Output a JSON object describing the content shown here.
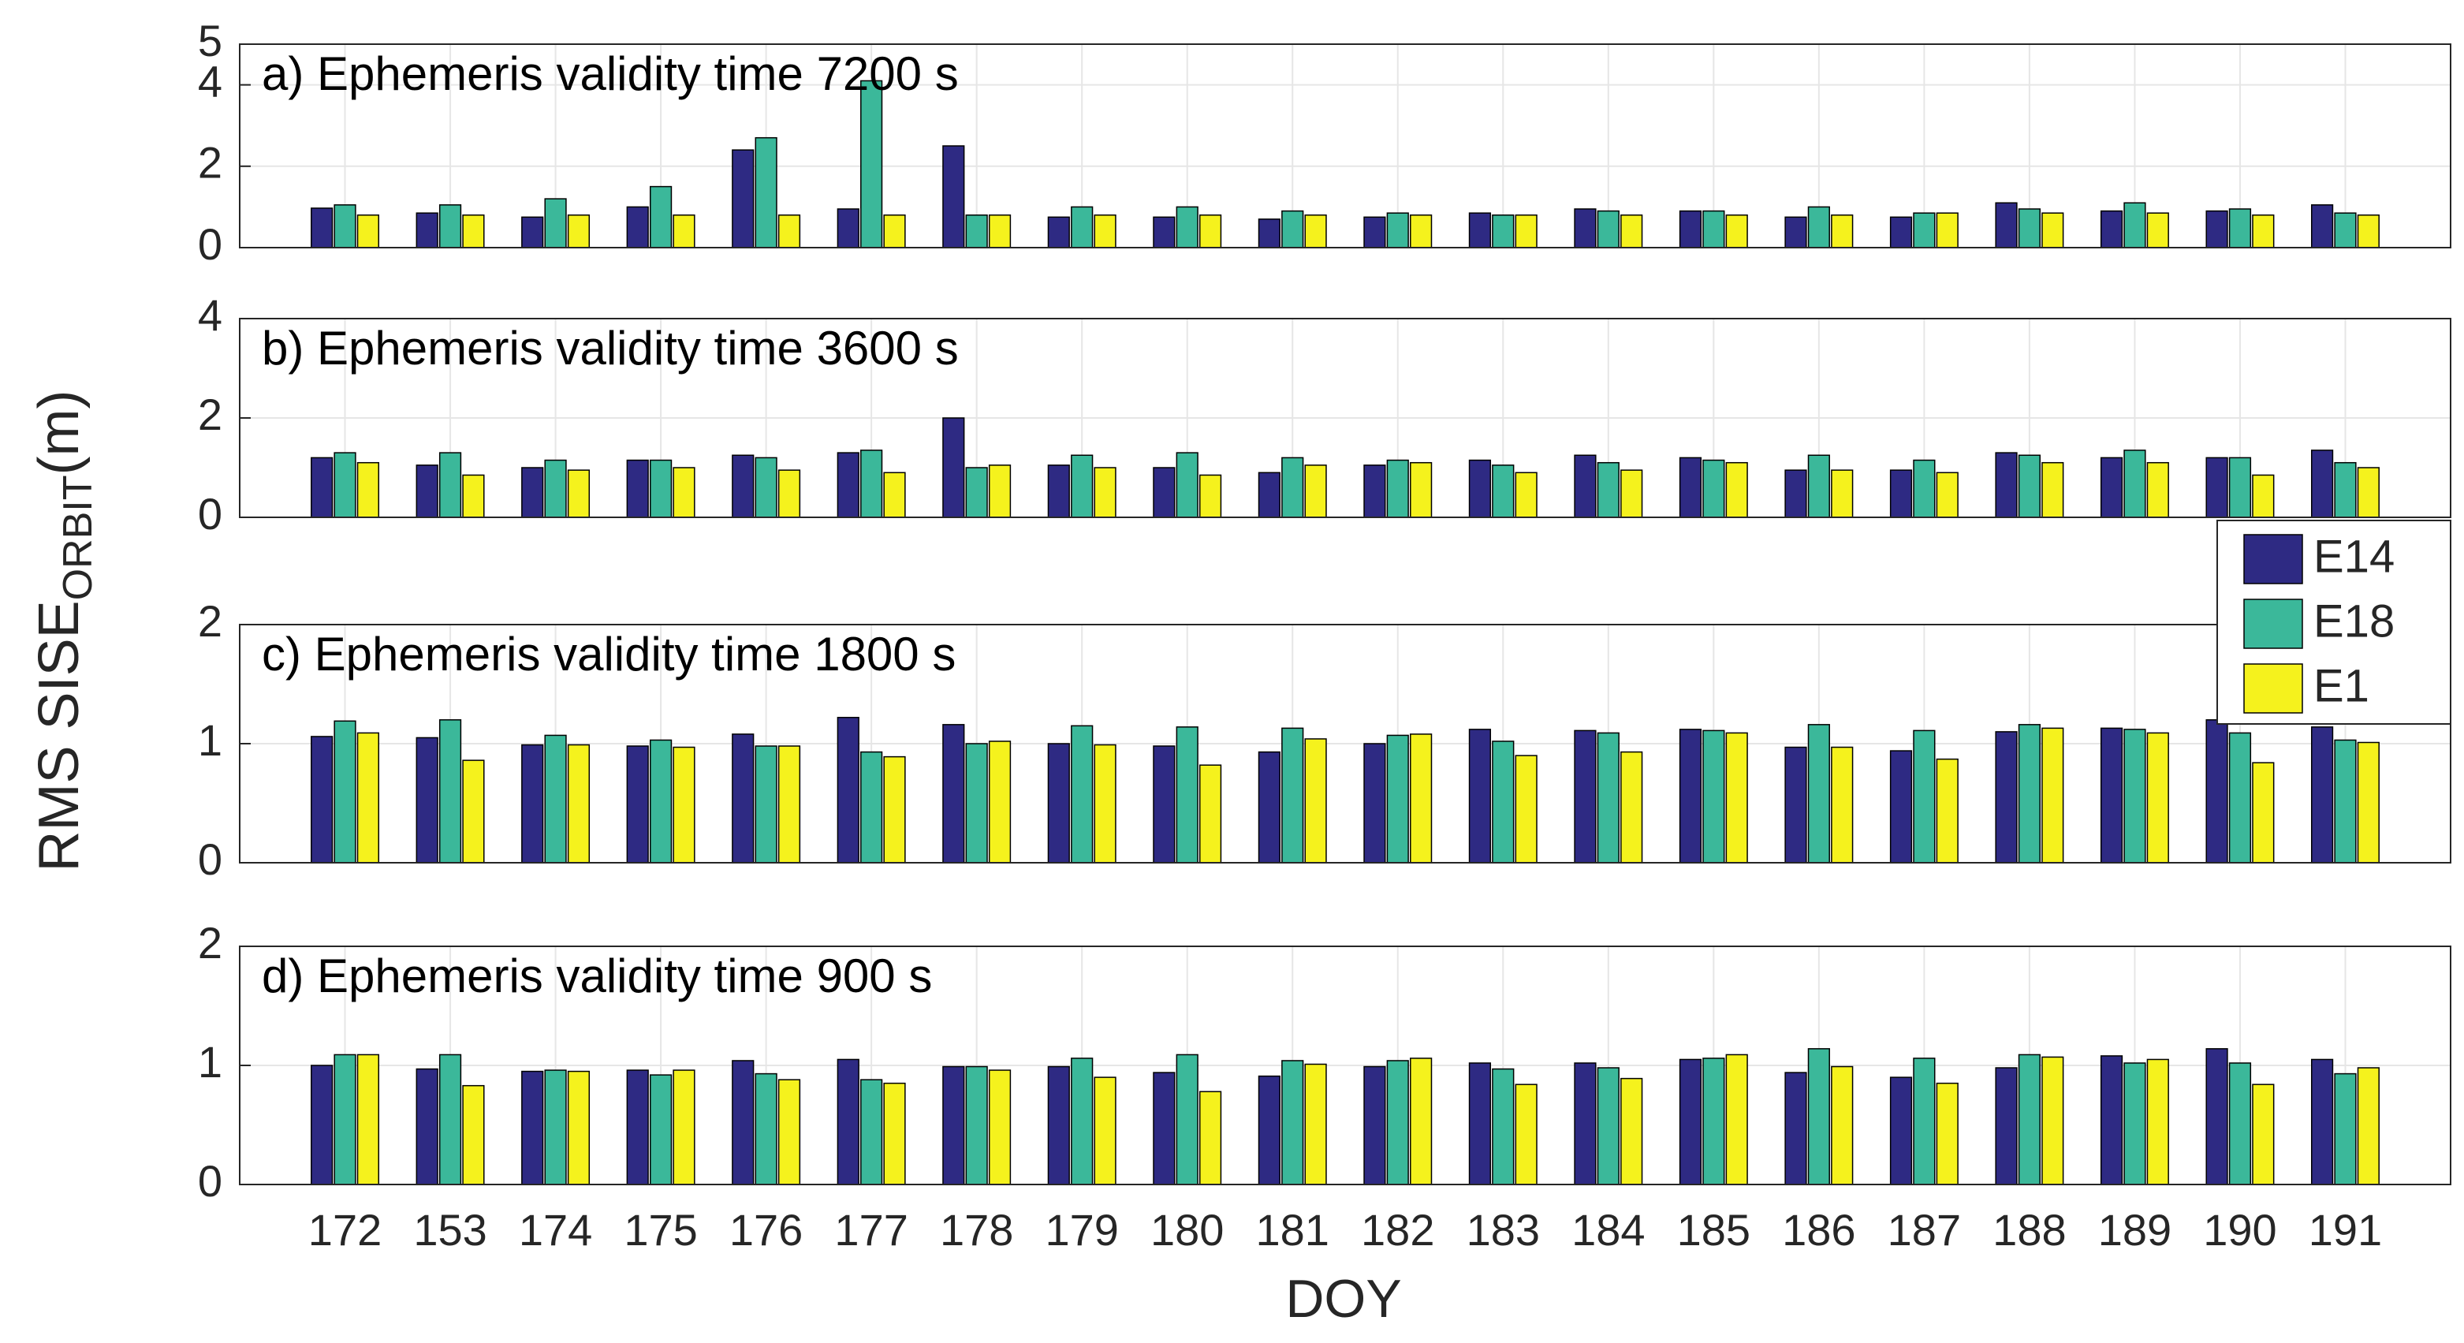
{
  "y_label": {
    "main": "RMS SISE",
    "sub": "ORBIT",
    "unit": "(m)"
  },
  "x_label": "DOY",
  "categories": [
    "172",
    "153",
    "174",
    "175",
    "176",
    "177",
    "178",
    "179",
    "180",
    "181",
    "182",
    "183",
    "184",
    "185",
    "186",
    "187",
    "188",
    "189",
    "190",
    "191"
  ],
  "legend": [
    {
      "name": "E14",
      "color": "#2e2a83"
    },
    {
      "name": "E18",
      "color": "#3bb89a"
    },
    {
      "name": "E1",
      "color": "#f5f21d"
    }
  ],
  "chart_data": [
    {
      "type": "bar",
      "title": "a) Ephemeris validity time 7200 s",
      "ylim": [
        0,
        5
      ],
      "yticks": [
        0,
        2,
        4,
        5
      ],
      "grid": true,
      "series": [
        {
          "values": [
            0.97,
            0.85,
            0.75,
            1.0,
            2.4,
            0.95,
            2.5,
            0.75,
            0.75,
            0.7,
            0.75,
            0.85,
            0.95,
            0.9,
            0.75,
            0.75,
            1.1,
            0.9,
            0.9,
            1.05
          ]
        },
        {
          "values": [
            1.05,
            1.05,
            1.2,
            1.5,
            2.7,
            4.1,
            0.8,
            1.0,
            1.0,
            0.9,
            0.85,
            0.8,
            0.9,
            0.9,
            1.0,
            0.85,
            0.95,
            1.1,
            0.95,
            0.85
          ]
        },
        {
          "values": [
            0.8,
            0.8,
            0.8,
            0.8,
            0.8,
            0.8,
            0.8,
            0.8,
            0.8,
            0.8,
            0.8,
            0.8,
            0.8,
            0.8,
            0.8,
            0.85,
            0.85,
            0.85,
            0.8,
            0.8
          ]
        }
      ]
    },
    {
      "type": "bar",
      "title": "b) Ephemeris validity time 3600 s",
      "ylim": [
        0,
        4
      ],
      "yticks": [
        0,
        2,
        4
      ],
      "grid": true,
      "series": [
        {
          "values": [
            1.2,
            1.05,
            1.0,
            1.15,
            1.25,
            1.3,
            2.0,
            1.05,
            1.0,
            0.9,
            1.05,
            1.15,
            1.25,
            1.2,
            0.95,
            0.95,
            1.3,
            1.2,
            1.2,
            1.35
          ]
        },
        {
          "values": [
            1.3,
            1.3,
            1.15,
            1.15,
            1.2,
            1.35,
            1.0,
            1.25,
            1.3,
            1.2,
            1.15,
            1.05,
            1.1,
            1.15,
            1.25,
            1.15,
            1.25,
            1.35,
            1.2,
            1.1
          ]
        },
        {
          "values": [
            1.1,
            0.85,
            0.95,
            1.0,
            0.95,
            0.9,
            1.05,
            1.0,
            0.85,
            1.05,
            1.1,
            0.9,
            0.95,
            1.1,
            0.95,
            0.9,
            1.1,
            1.1,
            0.85,
            1.0
          ]
        }
      ]
    },
    {
      "type": "bar",
      "title": "c) Ephemeris validity time 1800 s",
      "ylim": [
        0,
        2
      ],
      "yticks": [
        0,
        1,
        2
      ],
      "grid": true,
      "series": [
        {
          "values": [
            1.06,
            1.05,
            0.99,
            0.98,
            1.08,
            1.22,
            1.16,
            1.0,
            0.98,
            0.93,
            1.0,
            1.12,
            1.11,
            1.12,
            0.97,
            0.94,
            1.1,
            1.13,
            1.2,
            1.14
          ]
        },
        {
          "values": [
            1.19,
            1.2,
            1.07,
            1.03,
            0.98,
            0.93,
            1.0,
            1.15,
            1.14,
            1.13,
            1.07,
            1.02,
            1.09,
            1.11,
            1.16,
            1.11,
            1.16,
            1.12,
            1.09,
            1.03
          ]
        },
        {
          "values": [
            1.09,
            0.86,
            0.99,
            0.97,
            0.98,
            0.89,
            1.02,
            0.99,
            0.82,
            1.04,
            1.08,
            0.9,
            0.93,
            1.09,
            0.97,
            0.87,
            1.13,
            1.09,
            0.84,
            1.01
          ]
        }
      ]
    },
    {
      "type": "bar",
      "title": "d) Ephemeris validity time 900 s",
      "ylim": [
        0,
        2
      ],
      "yticks": [
        0,
        1,
        2
      ],
      "grid": true,
      "series": [
        {
          "values": [
            1.0,
            0.97,
            0.95,
            0.96,
            1.04,
            1.05,
            0.99,
            0.99,
            0.94,
            0.91,
            0.99,
            1.02,
            1.02,
            1.05,
            0.94,
            0.9,
            0.98,
            1.08,
            1.14,
            1.05
          ]
        },
        {
          "values": [
            1.09,
            1.09,
            0.96,
            0.92,
            0.93,
            0.88,
            0.99,
            1.06,
            1.09,
            1.04,
            1.04,
            0.97,
            0.98,
            1.06,
            1.14,
            1.06,
            1.09,
            1.02,
            1.02,
            0.93
          ]
        },
        {
          "values": [
            1.09,
            0.83,
            0.95,
            0.96,
            0.88,
            0.85,
            0.96,
            0.9,
            0.78,
            1.01,
            1.06,
            0.84,
            0.89,
            1.09,
            0.99,
            0.85,
            1.07,
            1.05,
            0.84,
            0.98
          ]
        }
      ]
    }
  ]
}
